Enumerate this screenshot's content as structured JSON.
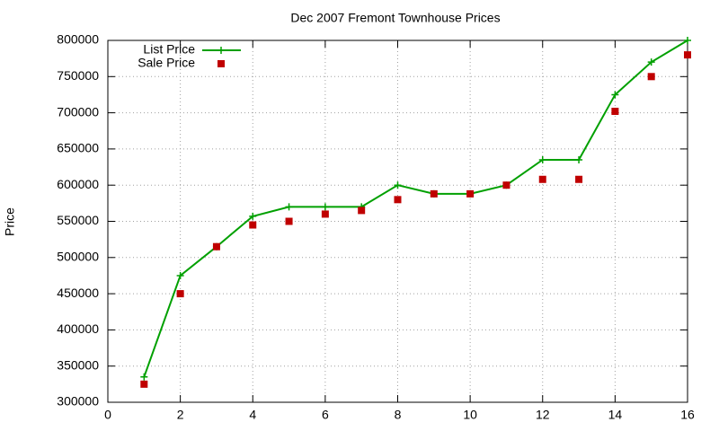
{
  "chart_data": {
    "type": "line",
    "title": "Dec 2007 Fremont Townhouse Prices",
    "y_label": "Price",
    "x": [
      1,
      2,
      3,
      4,
      5,
      6,
      7,
      8,
      9,
      10,
      11,
      12,
      13,
      14,
      15,
      16
    ],
    "series": [
      {
        "name": "List Price",
        "color": "#00a000",
        "style": "linespoints",
        "values": [
          335000,
          475000,
          515000,
          557000,
          570000,
          570000,
          570000,
          600000,
          588000,
          588000,
          600000,
          635000,
          635000,
          725000,
          770000,
          800000
        ]
      },
      {
        "name": "Sale Price",
        "color": "#c00000",
        "style": "points",
        "values": [
          325000,
          450000,
          515000,
          545000,
          550000,
          560000,
          565000,
          580000,
          588000,
          588000,
          600000,
          608000,
          608000,
          702000,
          750000,
          780000
        ]
      }
    ],
    "xlim": [
      0,
      16
    ],
    "xticks": [
      0,
      2,
      4,
      6,
      8,
      10,
      12,
      14,
      16
    ],
    "ylim": [
      300000,
      800000
    ],
    "yticks": [
      300000,
      350000,
      400000,
      450000,
      500000,
      550000,
      600000,
      650000,
      700000,
      750000,
      800000
    ],
    "grid": true,
    "legend": "top-left"
  }
}
